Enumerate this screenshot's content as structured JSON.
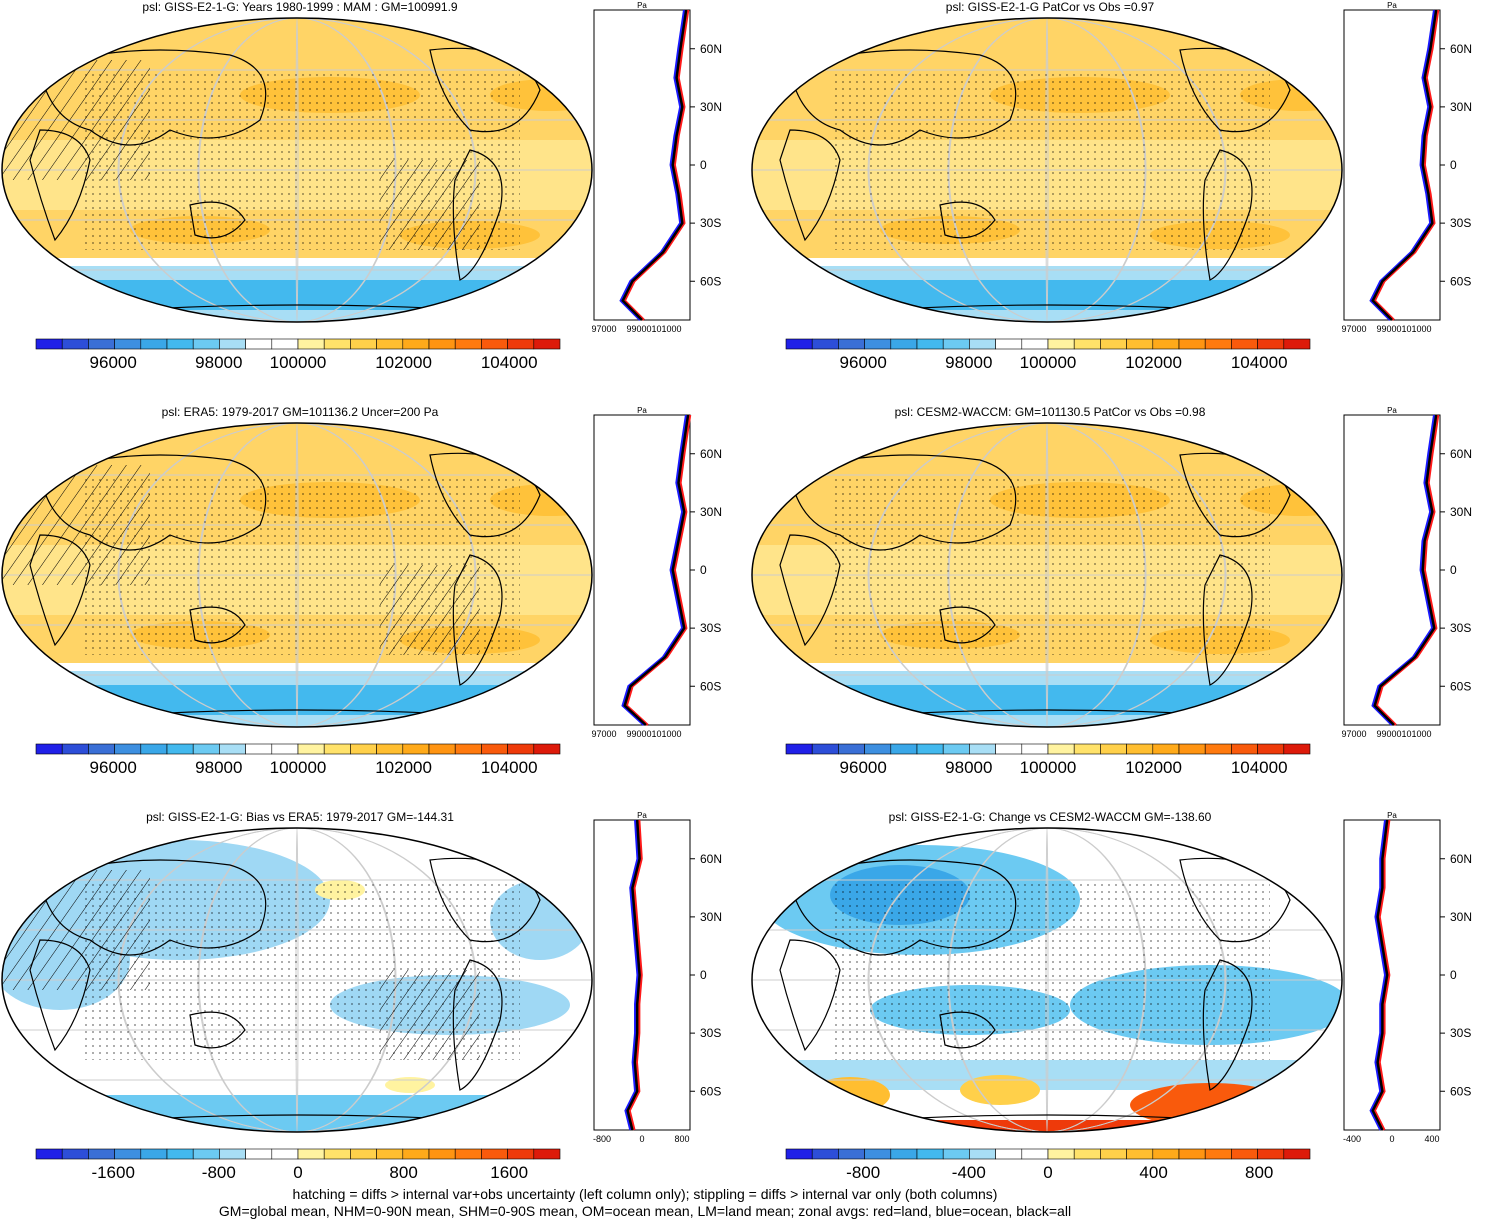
{
  "panels": [
    {
      "title": "psl: GISS-E2-1-G: Years 1980-1999 : MAM : GM=100991.9",
      "colorbar": {
        "type": "abs",
        "labels": [
          "96000",
          "98000",
          "100000",
          "102000",
          "104000"
        ]
      },
      "zonal": {
        "unit": "Pa",
        "xticks": [
          "97000",
          "99000101000"
        ]
      },
      "hatching": true,
      "stippling": true
    },
    {
      "title": "psl: GISS-E2-1-G PatCor vs Obs =0.97",
      "colorbar": {
        "type": "abs",
        "labels": [
          "96000",
          "98000",
          "100000",
          "102000",
          "104000"
        ]
      },
      "zonal": {
        "unit": "Pa",
        "xticks": [
          "97000",
          "99000101000"
        ]
      },
      "hatching": false,
      "stippling": true
    },
    {
      "title": "psl: ERA5: 1979-2017 GM=101136.2 Uncer=200 Pa",
      "colorbar": {
        "type": "abs",
        "labels": [
          "96000",
          "98000",
          "100000",
          "102000",
          "104000"
        ]
      },
      "zonal": {
        "unit": "Pa",
        "xticks": [
          "97000",
          "99000101000"
        ]
      },
      "hatching": true,
      "stippling": true
    },
    {
      "title": "psl: CESM2-WACCM: GM=101130.5 PatCor vs Obs =0.98",
      "colorbar": {
        "type": "abs",
        "labels": [
          "96000",
          "98000",
          "100000",
          "102000",
          "104000"
        ]
      },
      "zonal": {
        "unit": "Pa",
        "xticks": [
          "97000",
          "99000101000"
        ]
      },
      "hatching": false,
      "stippling": true
    },
    {
      "title": "psl: GISS-E2-1-G: Bias vs ERA5: 1979-2017 GM=-144.31",
      "colorbar": {
        "type": "bias",
        "labels": [
          "-1600",
          "-800",
          "0",
          "800",
          "1600"
        ]
      },
      "zonal": {
        "unit": "Pa",
        "xticks": [
          "-800",
          "0",
          "800"
        ]
      },
      "hatching": true,
      "stippling": true
    },
    {
      "title": "psl: GISS-E2-1-G: Change vs CESM2-WACCM GM=-138.60",
      "colorbar": {
        "type": "change",
        "labels": [
          "-800",
          "-400",
          "0",
          "400",
          "800"
        ]
      },
      "zonal": {
        "unit": "Pa",
        "xticks": [
          "-400",
          "0",
          "400"
        ]
      },
      "hatching": false,
      "stippling": true
    }
  ],
  "lat_labels": [
    "60N",
    "30N",
    "0",
    "30S",
    "60S"
  ],
  "colors": {
    "abs": [
      "#2020e8",
      "#2d4ed8",
      "#3a6fd6",
      "#3d8fe0",
      "#3aa7e8",
      "#43b9ee",
      "#6ccaf2",
      "#a8def5",
      "#ffffff",
      "#ffffff",
      "#fff3a0",
      "#ffe26a",
      "#ffd04a",
      "#ffbe30",
      "#ffaa1a",
      "#ff9412",
      "#ff7a0e",
      "#f95a0c",
      "#ee3a0a",
      "#dd1a0a"
    ],
    "bias": [
      "#2020e8",
      "#2d4ed8",
      "#3a6fd6",
      "#3d8fe0",
      "#3aa7e8",
      "#43b9ee",
      "#6ccaf2",
      "#a8def5",
      "#ffffff",
      "#ffffff",
      "#fff3a0",
      "#ffe26a",
      "#ffd04a",
      "#ffbe30",
      "#ffaa1a",
      "#ff9412",
      "#ff7a0e",
      "#f95a0c",
      "#ee3a0a",
      "#dd1a0a"
    ],
    "change": [
      "#2020e8",
      "#2d4ed8",
      "#3a6fd6",
      "#3d8fe0",
      "#3aa7e8",
      "#43b9ee",
      "#6ccaf2",
      "#a8def5",
      "#ffffff",
      "#ffffff",
      "#fff3a0",
      "#ffe26a",
      "#ffd04a",
      "#ffbe30",
      "#ffaa1a",
      "#ff9412",
      "#ff7a0e",
      "#f95a0c",
      "#ee3a0a",
      "#dd1a0a"
    ],
    "land": "#ff1a1a",
    "ocean": "#1a1aff",
    "all": "#000000"
  },
  "chart_data": [
    {
      "type": "heatmap",
      "title": "psl: GISS-E2-1-G: Years 1980-1999 : MAM : GM=100991.9",
      "colorbar_range": [
        95000,
        105000
      ],
      "colorbar_ticks": [
        96000,
        98000,
        100000,
        102000,
        104000
      ],
      "zonal_profile": {
        "lat": [
          80,
          60,
          45,
          30,
          15,
          0,
          -15,
          -30,
          -45,
          -60,
          -70,
          -80
        ],
        "all": [
          101800,
          101500,
          101300,
          101600,
          101300,
          101100,
          101400,
          101600,
          100600,
          99000,
          98500,
          99500
        ],
        "xlim": [
          97000,
          102000
        ]
      }
    },
    {
      "type": "heatmap",
      "title": "psl: GISS-E2-1-G PatCor vs Obs =0.97",
      "colorbar_range": [
        95000,
        105000
      ],
      "colorbar_ticks": [
        96000,
        98000,
        100000,
        102000,
        104000
      ],
      "zonal_profile": {
        "lat": [
          80,
          60,
          45,
          30,
          15,
          0,
          -15,
          -30,
          -45,
          -60,
          -70,
          -80
        ],
        "all": [
          101800,
          101500,
          101200,
          101500,
          101200,
          101100,
          101400,
          101600,
          100600,
          99000,
          98500,
          99500
        ],
        "xlim": [
          97000,
          102000
        ]
      }
    },
    {
      "type": "heatmap",
      "title": "psl: ERA5: 1979-2017 GM=101136.2 Uncer=200 Pa",
      "colorbar_range": [
        95000,
        105000
      ],
      "colorbar_ticks": [
        96000,
        98000,
        100000,
        102000,
        104000
      ],
      "zonal_profile": {
        "lat": [
          80,
          60,
          45,
          30,
          15,
          0,
          -15,
          -30,
          -45,
          -60,
          -70,
          -80
        ],
        "all": [
          101900,
          101600,
          101400,
          101700,
          101400,
          101100,
          101400,
          101700,
          100700,
          98900,
          98600,
          99700
        ],
        "xlim": [
          97000,
          102000
        ]
      }
    },
    {
      "type": "heatmap",
      "title": "psl: CESM2-WACCM: GM=101130.5 PatCor vs Obs =0.98",
      "colorbar_range": [
        95000,
        105000
      ],
      "colorbar_ticks": [
        96000,
        98000,
        100000,
        102000,
        104000
      ],
      "zonal_profile": {
        "lat": [
          80,
          60,
          45,
          30,
          15,
          0,
          -15,
          -30,
          -45,
          -60,
          -70,
          -80
        ],
        "all": [
          101800,
          101500,
          101300,
          101600,
          101200,
          101100,
          101400,
          101700,
          100700,
          98900,
          98600,
          99600
        ],
        "xlim": [
          97000,
          102000
        ]
      }
    },
    {
      "type": "heatmap",
      "title": "psl: GISS-E2-1-G: Bias vs ERA5: 1979-2017 GM=-144.31",
      "colorbar_range": [
        -2000,
        2000
      ],
      "colorbar_ticks": [
        -1600,
        -800,
        0,
        800,
        1600
      ],
      "zonal_profile": {
        "lat": [
          80,
          60,
          45,
          30,
          15,
          0,
          -15,
          -30,
          -45,
          -60,
          -70,
          -80
        ],
        "all": [
          -100,
          -50,
          -200,
          -150,
          -100,
          -50,
          -100,
          -100,
          -150,
          -100,
          -300,
          -200
        ],
        "xlim": [
          -1000,
          1000
        ]
      }
    },
    {
      "type": "heatmap",
      "title": "psl: GISS-E2-1-G: Change vs CESM2-WACCM GM=-138.60",
      "colorbar_range": [
        -1000,
        1000
      ],
      "colorbar_ticks": [
        -800,
        -400,
        0,
        400,
        800
      ],
      "zonal_profile": {
        "lat": [
          80,
          60,
          45,
          30,
          15,
          0,
          -15,
          -30,
          -45,
          -60,
          -70,
          -80
        ],
        "all": [
          -50,
          -100,
          -100,
          -150,
          -100,
          -50,
          -100,
          -100,
          -150,
          -100,
          -200,
          -100
        ],
        "xlim": [
          -500,
          500
        ]
      }
    }
  ],
  "footer": {
    "line1": "hatching = diffs > internal var+obs uncertainty (left column only); stippling = diffs > internal var only (both columns)",
    "line2": "GM=global mean, NHM=0-90N mean, SHM=0-90S mean, OM=ocean mean, LM=land mean; zonal avgs: red=land, blue=ocean, black=all"
  }
}
